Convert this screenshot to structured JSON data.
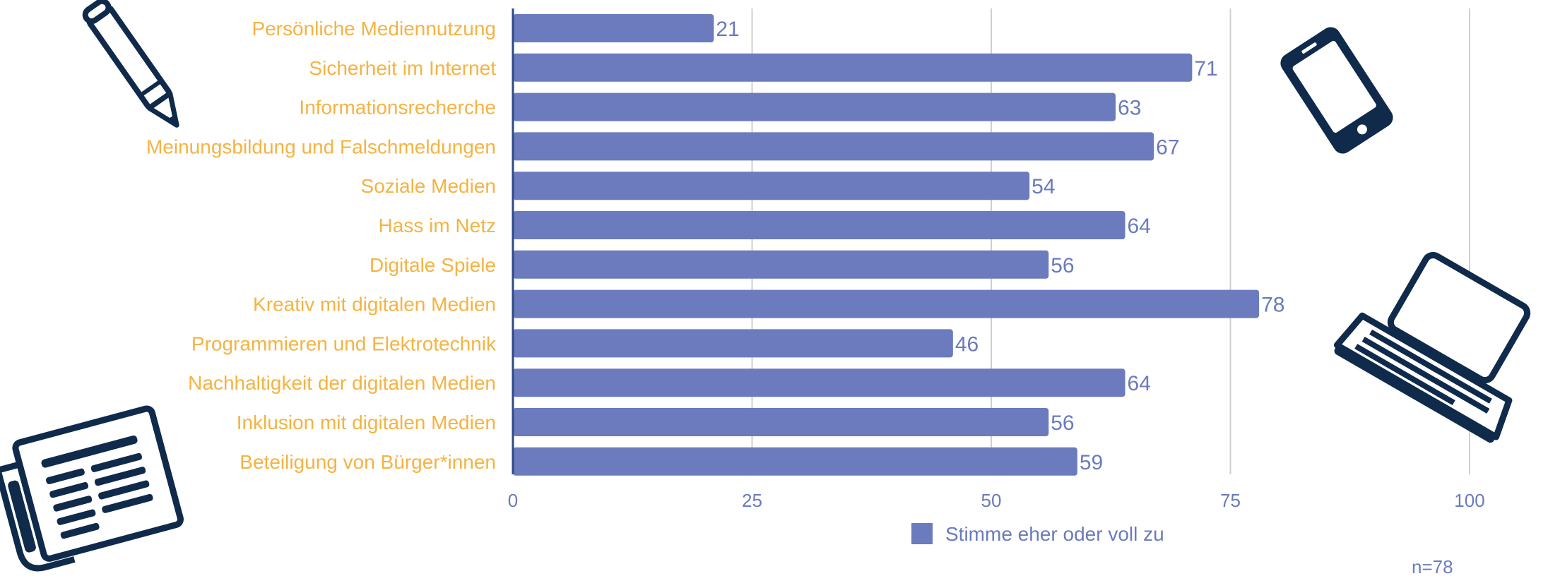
{
  "chart_data": {
    "type": "bar",
    "orientation": "horizontal",
    "categories": [
      "Persönliche Mediennutzung",
      "Sicherheit im Internet",
      "Informationsrecherche",
      "Meinungsbildung und Falschmeldungen",
      "Soziale Medien",
      "Hass im Netz",
      "Digitale Spiele",
      "Kreativ mit digitalen Medien",
      "Programmieren und Elektrotechnik",
      "Nachhaltigkeit der digitalen Medien",
      "Inklusion mit digitalen Medien",
      "Beteiligung von Bürger*innen"
    ],
    "series": [
      {
        "name": "Stimme eher oder voll zu",
        "values": [
          21,
          71,
          63,
          67,
          54,
          64,
          56,
          78,
          46,
          64,
          56,
          59
        ]
      }
    ],
    "xlim": [
      0,
      100
    ],
    "xticks": [
      "0",
      "25",
      "50",
      "75",
      "100"
    ],
    "grid": "vertical",
    "legend_position": "bottom-center",
    "note": "n=78"
  },
  "colors": {
    "bar": "#6b7bbd",
    "category_label": "#f5b342",
    "value_label": "#6a7bbd",
    "grid": "#cfcfcf",
    "axis": "#2f4a8a",
    "icon": "#0f2a4a"
  },
  "decorations": {
    "icons": [
      "pencil-icon",
      "smartphone-icon",
      "laptop-icon",
      "newspaper-icon"
    ]
  }
}
